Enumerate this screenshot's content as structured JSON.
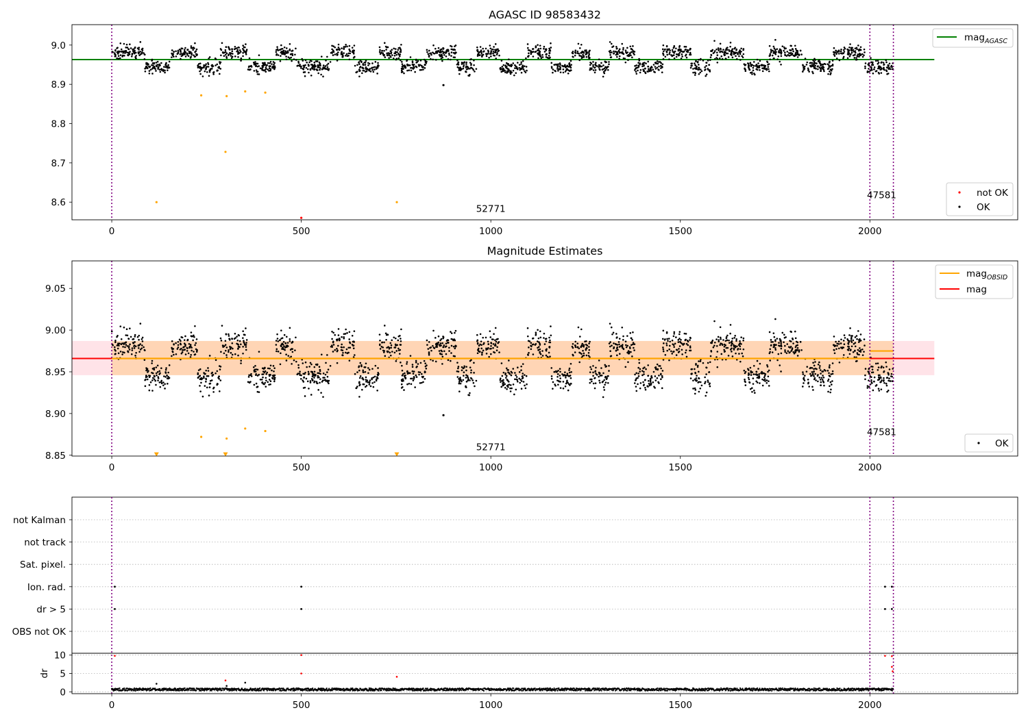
{
  "chart_data": [
    {
      "type": "scatter",
      "title": "AGASC ID 98583432",
      "xlabel": "",
      "ylabel": "",
      "xlim": [
        -105,
        2390
      ],
      "ylim": [
        8.555,
        9.052
      ],
      "x_ticks": [
        0,
        500,
        1000,
        1500,
        2000
      ],
      "y_ticks": [
        8.6,
        8.7,
        8.8,
        8.9,
        9.0
      ],
      "tick_labels_x": [
        "0",
        "500",
        "1000",
        "1500",
        "2000"
      ],
      "tick_labels_y": [
        "8.6",
        "8.7",
        "8.8",
        "8.9",
        "9.0"
      ],
      "obsid_boundaries": [
        0,
        2000,
        2062
      ],
      "obsid_labels": [
        {
          "text": "52771",
          "x": 1000,
          "y": 8.575
        },
        {
          "text": "47581",
          "x": 2031,
          "y": 8.61
        }
      ],
      "mag_agasc": 8.963,
      "mag_agasc_xrange": [
        -105,
        2170
      ],
      "legend_upper": [
        {
          "label": "mag",
          "sub": "AGASC",
          "color": "#008000"
        }
      ],
      "legend_lower": [
        {
          "label": "not OK",
          "color": "#ff0000"
        },
        {
          "label": "OK",
          "color": "#000000"
        }
      ],
      "legend_placement": [
        "top-right",
        "bottom-right"
      ],
      "grid": false,
      "outliers": [
        {
          "x": 118,
          "y": 8.6,
          "color": "#ffa500"
        },
        {
          "x": 236,
          "y": 8.872,
          "color": "#ffa500"
        },
        {
          "x": 300,
          "y": 8.728,
          "color": "#ffa500"
        },
        {
          "x": 303,
          "y": 8.87,
          "color": "#ffa500"
        },
        {
          "x": 352,
          "y": 8.882,
          "color": "#ffa500"
        },
        {
          "x": 405,
          "y": 8.879,
          "color": "#ffa500"
        },
        {
          "x": 752,
          "y": 8.6,
          "color": "#ffa500"
        },
        {
          "x": 500,
          "y": 8.56,
          "color": "#ff0000"
        },
        {
          "x": 875,
          "y": 8.898,
          "color": "#000000"
        }
      ]
    },
    {
      "type": "scatter",
      "title": "Magnitude Estimates",
      "xlabel": "",
      "ylabel": "",
      "xlim": [
        -105,
        2390
      ],
      "ylim": [
        8.849,
        9.083
      ],
      "x_ticks": [
        0,
        500,
        1000,
        1500,
        2000
      ],
      "y_ticks": [
        8.85,
        8.9,
        8.95,
        9.0,
        9.05
      ],
      "tick_labels_x": [
        "0",
        "500",
        "1000",
        "1500",
        "2000"
      ],
      "tick_labels_y": [
        "8.85",
        "8.90",
        "8.95",
        "9.00",
        "9.05"
      ],
      "obsid_boundaries": [
        0,
        2000,
        2062
      ],
      "obsid_labels": [
        {
          "text": "52771",
          "x": 1000,
          "y": 8.856
        },
        {
          "text": "47581",
          "x": 2031,
          "y": 8.874
        }
      ],
      "mag": 8.966,
      "mag_band": [
        8.946,
        8.987
      ],
      "mag_band_xrange": [
        -105,
        2170
      ],
      "obsid_segments": [
        {
          "x": [
            0,
            2000
          ],
          "mag": 8.966
        },
        {
          "x": [
            2000,
            2062
          ],
          "mag": 8.975
        }
      ],
      "legend_upper": [
        {
          "label": "mag",
          "sub": "OBSID",
          "color": "#ffa500"
        },
        {
          "label": "mag",
          "sub": "",
          "color": "#ff0000"
        }
      ],
      "legend_lower": [
        {
          "label": "OK",
          "color": "#000000"
        }
      ],
      "legend_placement": [
        "top-right",
        "bottom-right"
      ],
      "grid": false,
      "outliers": [
        {
          "x": 236,
          "y": 8.872,
          "color": "#ffa500"
        },
        {
          "x": 303,
          "y": 8.87,
          "color": "#ffa500"
        },
        {
          "x": 352,
          "y": 8.882,
          "color": "#ffa500"
        },
        {
          "x": 405,
          "y": 8.879,
          "color": "#ffa500"
        },
        {
          "x": 875,
          "y": 8.898,
          "color": "#000000"
        }
      ],
      "lower_limits": [
        {
          "x": 118,
          "y": 8.851,
          "color": "#ffa500"
        },
        {
          "x": 300,
          "y": 8.851,
          "color": "#ffa500"
        },
        {
          "x": 752,
          "y": 8.851,
          "color": "#ffa500"
        }
      ]
    },
    {
      "type": "scatter",
      "title": "",
      "xlabel": "",
      "ylabel": "",
      "xlim": [
        -105,
        2390
      ],
      "categories": [
        "not Kalman",
        "not track",
        "Sat. pixel.",
        "Ion. rad.",
        "dr > 5",
        "OBS not OK"
      ],
      "grid": true,
      "flags": [
        {
          "category": "Ion. rad.",
          "x": [
            8,
            500,
            2040,
            2058
          ]
        },
        {
          "category": "dr > 5",
          "x": [
            8,
            500,
            2040,
            2058
          ]
        }
      ]
    },
    {
      "type": "scatter",
      "title": "",
      "xlabel": "",
      "ylabel": "dr",
      "xlim": [
        -105,
        2390
      ],
      "ylim": [
        -0.5,
        10.5
      ],
      "x_ticks": [
        0,
        500,
        1000,
        1500,
        2000
      ],
      "y_ticks": [
        0,
        5,
        10
      ],
      "tick_labels_x": [
        "0",
        "500",
        "1000",
        "1500",
        "2000"
      ],
      "tick_labels_y": [
        "0",
        "5",
        "10"
      ],
      "grid": true,
      "points": [
        {
          "x": 8,
          "y": 9.8,
          "color": "#ff0000"
        },
        {
          "x": 118,
          "y": 2.2,
          "color": "#000000"
        },
        {
          "x": 300,
          "y": 3.1,
          "color": "#ff0000"
        },
        {
          "x": 303,
          "y": 1.6,
          "color": "#000000"
        },
        {
          "x": 352,
          "y": 2.5,
          "color": "#000000"
        },
        {
          "x": 500,
          "y": 10.0,
          "color": "#ff0000"
        },
        {
          "x": 500,
          "y": 5.0,
          "color": "#ff0000"
        },
        {
          "x": 752,
          "y": 4.1,
          "color": "#ff0000"
        },
        {
          "x": 2040,
          "y": 9.8,
          "color": "#ff0000"
        },
        {
          "x": 2058,
          "y": 9.7,
          "color": "#ff0000"
        },
        {
          "x": 2058,
          "y": 6.8,
          "color": "#ff0000"
        },
        {
          "x": 2060,
          "y": 5.6,
          "color": "#ff0000"
        }
      ]
    }
  ]
}
